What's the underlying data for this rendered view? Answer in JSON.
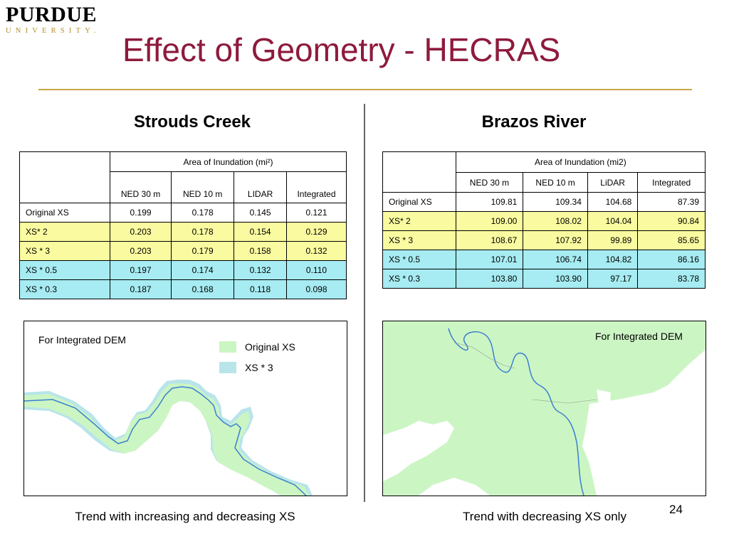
{
  "logo": {
    "name": "PURDUE",
    "sub": "UNIVERSITY."
  },
  "title": "Effect of Geometry - HECRAS",
  "colors": {
    "title": "#8e1a3c",
    "rule": "#c8a845",
    "yellow_row": "#fafaa0",
    "cyan_row": "#a6ecf2",
    "original_xs": "#ccf5c4",
    "xs3": "#b8e4ea",
    "river": "#3a7fd0"
  },
  "left": {
    "heading": "Strouds Creek",
    "table": {
      "group_header": "Area of Inundation (mi²)",
      "columns": [
        "NED 30 m",
        "NED 10 m",
        "LIDAR",
        "Integrated"
      ],
      "rows": [
        {
          "label": "Original XS",
          "values": [
            "0.199",
            "0.178",
            "0.145",
            "0.121"
          ]
        },
        {
          "label": "XS* 2",
          "values": [
            "0.203",
            "0.178",
            "0.154",
            "0.129"
          ]
        },
        {
          "label": "XS * 3",
          "values": [
            "0.203",
            "0.179",
            "0.158",
            "0.132"
          ]
        },
        {
          "label": "XS * 0.5",
          "values": [
            "0.197",
            "0.174",
            "0.132",
            "0.110"
          ]
        },
        {
          "label": "XS * 0.3",
          "values": [
            "0.187",
            "0.168",
            "0.118",
            "0.098"
          ]
        }
      ]
    },
    "map": {
      "label": "For Integrated DEM",
      "legend": [
        {
          "label": "Original XS",
          "color": "#ccf5c4"
        },
        {
          "label": "XS * 3",
          "color": "#b8e4ea"
        }
      ]
    },
    "caption": "Trend with increasing and decreasing XS"
  },
  "right": {
    "heading": "Brazos River",
    "table": {
      "group_header": "Area of Inundation (mi2)",
      "columns": [
        "NED 30 m",
        "NED 10 m",
        "LiDAR",
        "Integrated"
      ],
      "rows": [
        {
          "label": "Original XS",
          "values": [
            "109.81",
            "109.34",
            "104.68",
            "87.39"
          ]
        },
        {
          "label": "XS* 2",
          "values": [
            "109.00",
            "108.02",
            "104.04",
            "90.84"
          ]
        },
        {
          "label": "XS * 3",
          "values": [
            "108.67",
            "107.92",
            "99.89",
            "85.65"
          ]
        },
        {
          "label": "XS * 0.5",
          "values": [
            "107.01",
            "106.74",
            "104.82",
            "86.16"
          ]
        },
        {
          "label": "XS * 0.3",
          "values": [
            "103.80",
            "103.90",
            "97.17",
            "83.78"
          ]
        }
      ]
    },
    "map": {
      "label": "For Integrated DEM"
    },
    "caption": "Trend with decreasing XS only"
  },
  "page_number": "24"
}
